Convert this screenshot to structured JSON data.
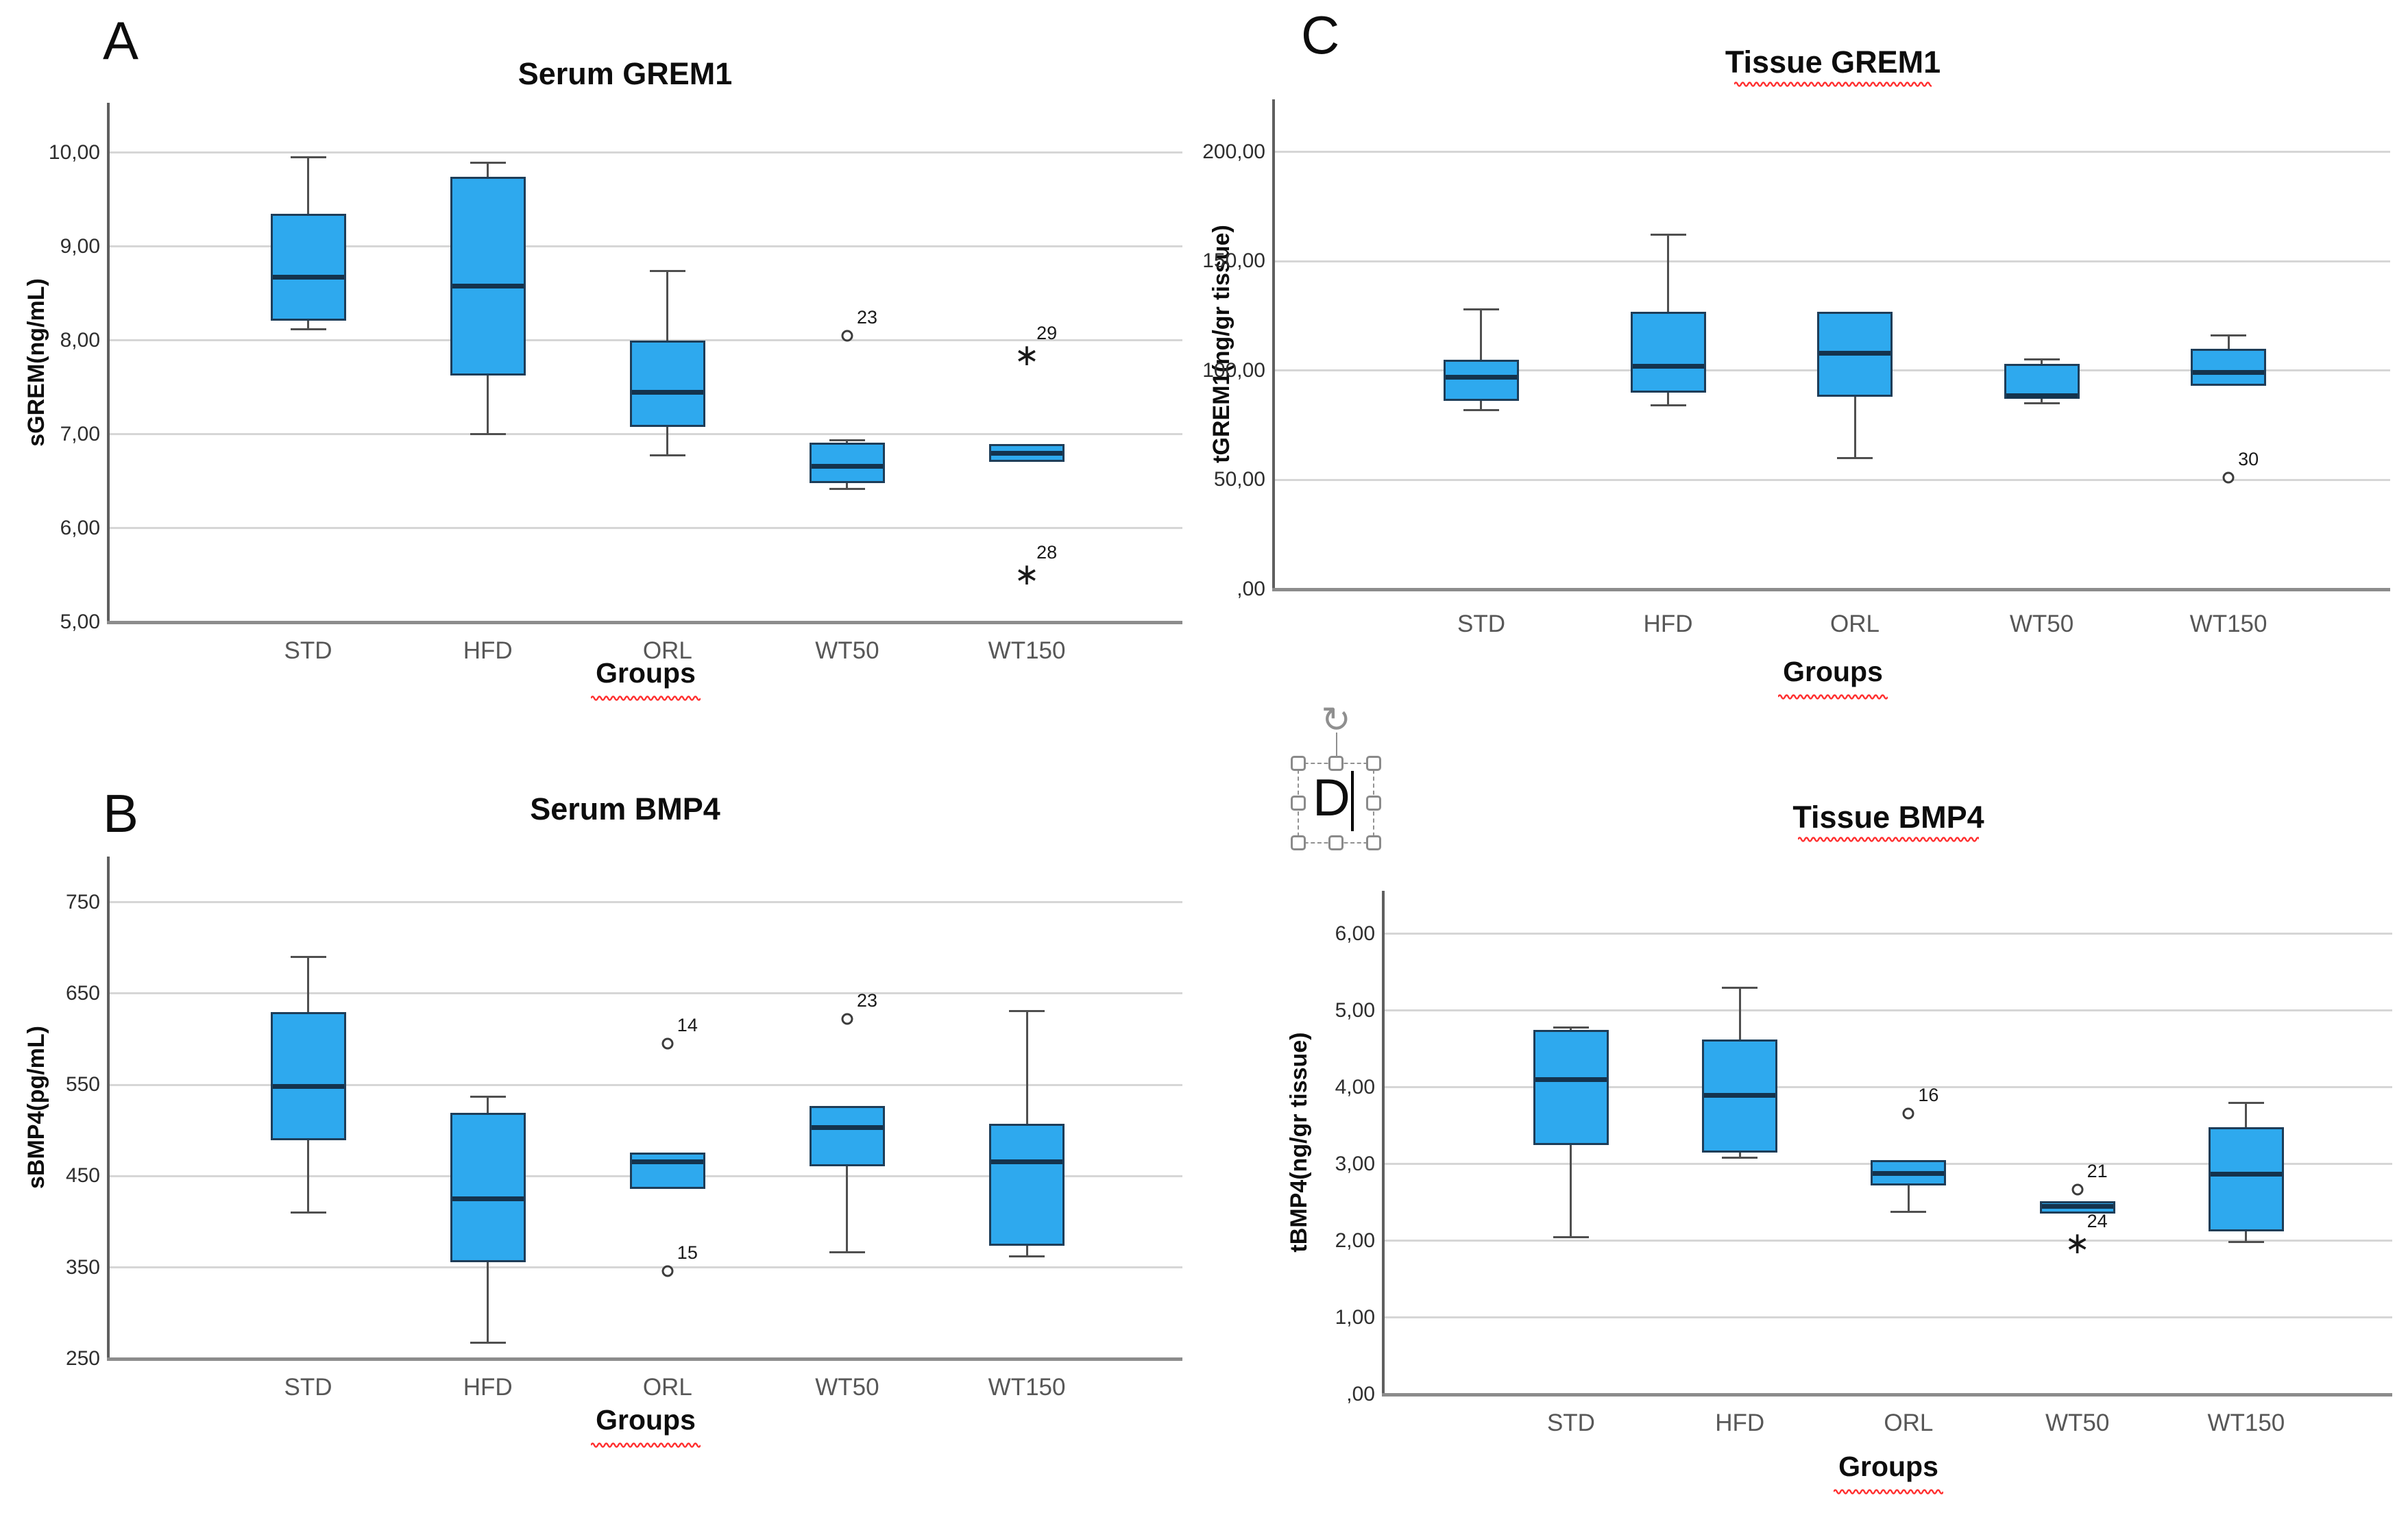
{
  "figure": {
    "background": "#ffffff",
    "box_fill": "#2EA9EE",
    "box_border": "#1E3D58",
    "median_color": "#14334D",
    "whisker_color": "#4f4f4f",
    "gridline_color": "#d6d6d6",
    "squiggle_color": "#ff2e2e",
    "outlier_markers": {
      "mild": "circle",
      "extreme": "asterisk"
    },
    "asterisk_glyph": "∗",
    "rotate_icon_glyph": "↻"
  },
  "selection": {
    "attached_to": "panel-label-d"
  },
  "chart_data": [
    {
      "id": "A",
      "type": "box",
      "panel_label": "A",
      "title": "Serum GREM1",
      "title_squiggle": false,
      "xlabel": "Groups",
      "xlabel_squiggle": true,
      "ylabel": "sGREM(ng/mL)",
      "categories": [
        "STD",
        "HFD",
        "ORL",
        "WT50",
        "WT150"
      ],
      "ylim": [
        5,
        10.53
      ],
      "grid": true,
      "yticks": [
        {
          "value": 5,
          "label": "5,00"
        },
        {
          "value": 6,
          "label": "6,00"
        },
        {
          "value": 7,
          "label": "7,00"
        },
        {
          "value": 8,
          "label": "8,00"
        },
        {
          "value": 9,
          "label": "9,00"
        },
        {
          "value": 10,
          "label": "10,00"
        }
      ],
      "boxes": [
        {
          "group": "STD",
          "low": 8.12,
          "q1": 8.21,
          "median": 8.67,
          "q3": 9.35,
          "high": 9.95,
          "outliers": []
        },
        {
          "group": "HFD",
          "low": 7.0,
          "q1": 7.63,
          "median": 8.58,
          "q3": 9.74,
          "high": 9.89,
          "outliers": []
        },
        {
          "group": "ORL",
          "low": 6.78,
          "q1": 7.08,
          "median": 7.45,
          "q3": 8.0,
          "high": 8.74,
          "outliers": []
        },
        {
          "group": "WT50",
          "low": 6.42,
          "q1": 6.48,
          "median": 6.66,
          "q3": 6.91,
          "high": 6.94,
          "outliers": [
            {
              "label": "23",
              "value": 8.05,
              "marker": "circle"
            }
          ]
        },
        {
          "group": "WT150",
          "low": null,
          "q1": 6.71,
          "median": 6.8,
          "q3": 6.9,
          "high": null,
          "outliers": [
            {
              "label": "29",
              "value": 7.88,
              "marker": "asterisk"
            },
            {
              "label": "28",
              "value": 5.55,
              "marker": "asterisk"
            }
          ]
        }
      ]
    },
    {
      "id": "B",
      "type": "box",
      "panel_label": "B",
      "title": "Serum BMP4",
      "title_squiggle": false,
      "xlabel": "Groups",
      "xlabel_squiggle": true,
      "ylabel": "sBMP4(pg/mL)",
      "categories": [
        "STD",
        "HFD",
        "ORL",
        "WT50",
        "WT150"
      ],
      "ylim": [
        250,
        800
      ],
      "grid": true,
      "yticks": [
        {
          "value": 250,
          "label": "250"
        },
        {
          "value": 350,
          "label": "350"
        },
        {
          "value": 450,
          "label": "450"
        },
        {
          "value": 550,
          "label": "550"
        },
        {
          "value": 650,
          "label": "650"
        },
        {
          "value": 750,
          "label": "750"
        }
      ],
      "boxes": [
        {
          "group": "STD",
          "low": 410,
          "q1": 489,
          "median": 548,
          "q3": 630,
          "high": 690,
          "outliers": []
        },
        {
          "group": "HFD",
          "low": 268,
          "q1": 356,
          "median": 425,
          "q3": 519,
          "high": 537,
          "outliers": []
        },
        {
          "group": "ORL",
          "low": null,
          "q1": 436,
          "median": 466,
          "q3": 476,
          "high": null,
          "outliers": [
            {
              "label": "14",
              "value": 595,
              "marker": "circle"
            },
            {
              "label": "15",
              "value": 346,
              "marker": "circle"
            }
          ]
        },
        {
          "group": "WT50",
          "low": 367,
          "q1": 461,
          "median": 503,
          "q3": 527,
          "high": null,
          "outliers": [
            {
              "label": "23",
              "value": 622,
              "marker": "circle"
            }
          ]
        },
        {
          "group": "WT150",
          "low": 362,
          "q1": 374,
          "median": 466,
          "q3": 507,
          "high": 631,
          "outliers": []
        }
      ]
    },
    {
      "id": "C",
      "type": "box",
      "panel_label": "C",
      "title": "Tissue GREM1",
      "title_squiggle": true,
      "xlabel": "Groups",
      "xlabel_squiggle": true,
      "ylabel": "tGREM1(ng/gr tissue)",
      "categories": [
        "STD",
        "HFD",
        "ORL",
        "WT50",
        "WT150"
      ],
      "ylim": [
        0,
        224
      ],
      "grid": true,
      "yticks": [
        {
          "value": 0,
          "label": ",00"
        },
        {
          "value": 50,
          "label": "50,00"
        },
        {
          "value": 100,
          "label": "100,00"
        },
        {
          "value": 150,
          "label": "150,00"
        },
        {
          "value": 200,
          "label": "200,00"
        }
      ],
      "boxes": [
        {
          "group": "STD",
          "low": 82,
          "q1": 86,
          "median": 97,
          "q3": 105,
          "high": 128,
          "outliers": []
        },
        {
          "group": "HFD",
          "low": 84,
          "q1": 90,
          "median": 102,
          "q3": 127,
          "high": 162,
          "outliers": []
        },
        {
          "group": "ORL",
          "low": 60,
          "q1": 88,
          "median": 108,
          "q3": 127,
          "high": null,
          "outliers": []
        },
        {
          "group": "WT50",
          "low": 85,
          "q1": 87,
          "median": 88.5,
          "q3": 103,
          "high": 105,
          "outliers": []
        },
        {
          "group": "WT150",
          "low": null,
          "q1": 93,
          "median": 99,
          "q3": 110,
          "high": 116,
          "outliers": [
            {
              "label": "30",
              "value": 51,
              "marker": "circle"
            }
          ]
        }
      ]
    },
    {
      "id": "D",
      "type": "box",
      "panel_label": "D",
      "title": "Tissue BMP4",
      "title_squiggle": true,
      "xlabel": "Groups",
      "xlabel_squiggle": true,
      "ylabel": "tBMP4(ng/gr tissue)",
      "categories": [
        "STD",
        "HFD",
        "ORL",
        "WT50",
        "WT150"
      ],
      "ylim": [
        0,
        6.56
      ],
      "grid": true,
      "yticks": [
        {
          "value": 0,
          "label": ",00"
        },
        {
          "value": 1,
          "label": "1,00"
        },
        {
          "value": 2,
          "label": "2,00"
        },
        {
          "value": 3,
          "label": "3,00"
        },
        {
          "value": 4,
          "label": "4,00"
        },
        {
          "value": 5,
          "label": "5,00"
        },
        {
          "value": 6,
          "label": "6,00"
        }
      ],
      "boxes": [
        {
          "group": "STD",
          "low": 2.05,
          "q1": 3.25,
          "median": 4.1,
          "q3": 4.75,
          "high": 4.78,
          "outliers": []
        },
        {
          "group": "HFD",
          "low": 3.08,
          "q1": 3.15,
          "median": 3.9,
          "q3": 4.62,
          "high": 5.3,
          "outliers": []
        },
        {
          "group": "ORL",
          "low": 2.38,
          "q1": 2.72,
          "median": 2.88,
          "q3": 3.05,
          "high": null,
          "outliers": [
            {
              "label": "16",
              "value": 3.66,
              "marker": "circle"
            }
          ]
        },
        {
          "group": "WT50",
          "low": null,
          "q1": 2.36,
          "median": 2.45,
          "q3": 2.52,
          "high": null,
          "outliers": [
            {
              "label": "21",
              "value": 2.67,
              "marker": "circle"
            },
            {
              "label": "24",
              "value": 2.02,
              "marker": "asterisk"
            }
          ]
        },
        {
          "group": "WT150",
          "low": 1.99,
          "q1": 2.12,
          "median": 2.87,
          "q3": 3.48,
          "high": 3.8,
          "outliers": []
        }
      ]
    }
  ]
}
